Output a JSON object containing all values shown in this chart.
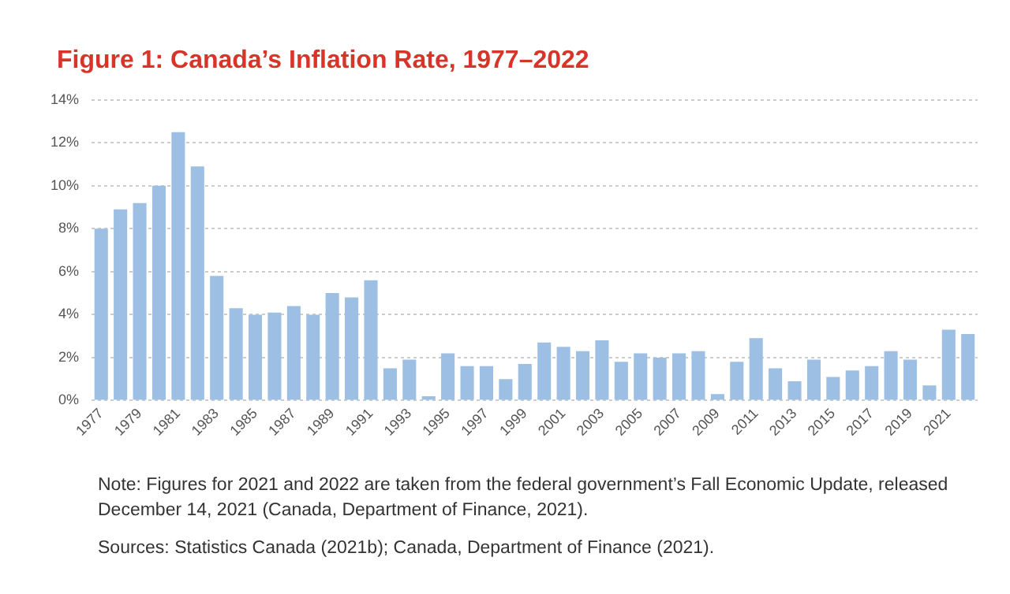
{
  "chart_data": {
    "type": "bar",
    "title": "Figure 1: Canada’s Inflation Rate, 1977–2022",
    "categories": [
      "1977",
      null,
      "1979",
      null,
      "1981",
      null,
      "1983",
      null,
      "1985",
      null,
      "1987",
      null,
      "1989",
      null,
      "1991",
      null,
      "1993",
      null,
      "1995",
      null,
      "1997",
      null,
      "1999",
      null,
      "2001",
      null,
      "2003",
      null,
      "2005",
      null,
      "2007",
      null,
      "2009",
      null,
      "2011",
      null,
      "2013",
      null,
      "2015",
      null,
      "2017",
      null,
      "2019",
      null,
      "2021",
      null
    ],
    "values": [
      8.0,
      8.9,
      9.2,
      10.0,
      12.5,
      10.9,
      5.8,
      4.3,
      4.0,
      4.1,
      4.4,
      4.0,
      5.0,
      4.8,
      5.6,
      1.5,
      1.9,
      0.2,
      2.2,
      1.6,
      1.6,
      1.0,
      1.7,
      2.7,
      2.5,
      2.3,
      2.8,
      1.8,
      2.2,
      2.0,
      2.2,
      2.3,
      0.3,
      1.8,
      2.9,
      1.5,
      0.9,
      1.9,
      1.1,
      1.4,
      1.6,
      2.3,
      1.9,
      0.7,
      3.3,
      3.1
    ],
    "color": "#9dbfe3",
    "ylim": [
      0,
      14
    ],
    "yticks": [
      {
        "value": 0,
        "label": "0%"
      },
      {
        "value": 2,
        "label": "2%"
      },
      {
        "value": 4,
        "label": "4%"
      },
      {
        "value": 6,
        "label": "6%"
      },
      {
        "value": 8,
        "label": "8%"
      },
      {
        "value": 10,
        "label": "10%"
      },
      {
        "value": 12,
        "label": "12%"
      },
      {
        "value": 14,
        "label": "14%"
      }
    ],
    "grid": "y",
    "annotations": [
      "Note: Figures for 2021 and 2022 are taken from the federal government’s Fall Economic Update, released December 14, 2021 (Canada, Department of Finance, 2021).",
      "Sources: Statistics Canada (2021b); Canada, Department of Finance (2021)."
    ]
  }
}
